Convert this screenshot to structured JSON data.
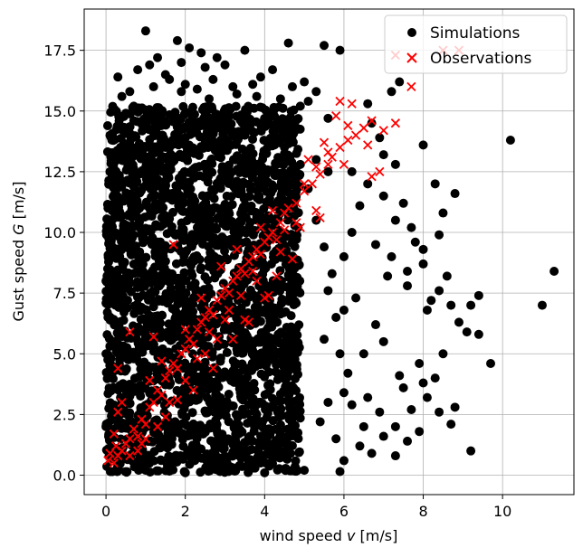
{
  "chart_data": {
    "type": "scatter",
    "xlabel": "wind speed v [m/s]",
    "ylabel": "Gust speed G [m/s]",
    "xlim": [
      -0.55,
      11.8
    ],
    "ylim": [
      -0.8,
      19.2
    ],
    "xticks": [
      0,
      2,
      4,
      6,
      8,
      10
    ],
    "yticks": [
      0.0,
      2.5,
      5.0,
      7.5,
      10.0,
      12.5,
      15.0,
      17.5
    ],
    "xtick_labels": [
      "0",
      "2",
      "4",
      "6",
      "8",
      "10"
    ],
    "ytick_labels": [
      "0.0",
      "2.5",
      "5.0",
      "7.5",
      "10.0",
      "12.5",
      "15.0",
      "17.5"
    ],
    "grid": true,
    "legend_position": "top-right",
    "series": [
      {
        "name": "Simulations",
        "marker": "circle",
        "color": "#000000",
        "points": [
          [
            1.0,
            18.3
          ],
          [
            2.1,
            17.6
          ],
          [
            1.8,
            17.9
          ],
          [
            1.3,
            17.2
          ],
          [
            2.4,
            17.4
          ],
          [
            1.5,
            16.5
          ],
          [
            1.1,
            16.9
          ],
          [
            0.3,
            16.4
          ],
          [
            0.6,
            15.8
          ],
          [
            2.8,
            17.2
          ],
          [
            3.0,
            16.9
          ],
          [
            3.5,
            17.5
          ],
          [
            3.2,
            16.0
          ],
          [
            4.2,
            16.7
          ],
          [
            4.6,
            17.8
          ],
          [
            5.5,
            17.7
          ],
          [
            5.9,
            17.5
          ],
          [
            5.0,
            16.2
          ],
          [
            3.8,
            15.6
          ],
          [
            2.6,
            15.5
          ],
          [
            1.9,
            15.8
          ],
          [
            0.7,
            15.2
          ],
          [
            0.1,
            14.0
          ],
          [
            5.1,
            15.4
          ],
          [
            5.6,
            14.7
          ],
          [
            7.2,
            15.8
          ],
          [
            7.4,
            16.2
          ],
          [
            6.6,
            15.3
          ],
          [
            6.2,
            12.5
          ],
          [
            6.6,
            12.0
          ],
          [
            6.4,
            11.1
          ],
          [
            7.0,
            11.5
          ],
          [
            7.3,
            10.5
          ],
          [
            7.5,
            11.2
          ],
          [
            7.2,
            9.0
          ],
          [
            6.8,
            9.5
          ],
          [
            7.1,
            8.2
          ],
          [
            7.6,
            8.4
          ],
          [
            8.0,
            13.6
          ],
          [
            8.8,
            11.6
          ],
          [
            8.5,
            10.8
          ],
          [
            8.0,
            9.3
          ],
          [
            8.0,
            8.7
          ],
          [
            7.6,
            7.8
          ],
          [
            8.1,
            6.8
          ],
          [
            8.4,
            7.6
          ],
          [
            8.7,
            7.0
          ],
          [
            9.2,
            7.0
          ],
          [
            9.4,
            7.4
          ],
          [
            9.1,
            5.9
          ],
          [
            9.4,
            5.8
          ],
          [
            9.7,
            4.6
          ],
          [
            8.8,
            2.8
          ],
          [
            8.7,
            2.1
          ],
          [
            8.0,
            3.8
          ],
          [
            7.9,
            4.6
          ],
          [
            7.4,
            4.1
          ],
          [
            7.5,
            3.6
          ],
          [
            7.3,
            2.0
          ],
          [
            6.9,
            2.6
          ],
          [
            6.6,
            3.2
          ],
          [
            9.2,
            1.0
          ],
          [
            10.2,
            13.8
          ],
          [
            11.0,
            7.0
          ],
          [
            11.3,
            8.4
          ],
          [
            7.7,
            2.7
          ],
          [
            7.0,
            5.5
          ],
          [
            6.8,
            6.2
          ],
          [
            6.3,
            7.3
          ],
          [
            6.5,
            5.0
          ],
          [
            6.1,
            4.2
          ],
          [
            6.4,
            1.2
          ],
          [
            6.0,
            0.6
          ],
          [
            5.8,
            1.5
          ],
          [
            5.9,
            0.15
          ],
          [
            0.7,
            14.6
          ],
          [
            1.4,
            15.0
          ],
          [
            2.2,
            14.9
          ],
          [
            3.1,
            14.8
          ],
          [
            4.0,
            14.7
          ],
          [
            4.8,
            14.3
          ],
          [
            5.3,
            13.0
          ],
          [
            5.6,
            12.5
          ],
          [
            6.2,
            10.0
          ],
          [
            6.0,
            9.0
          ],
          [
            5.7,
            8.3
          ],
          [
            6.0,
            6.8
          ],
          [
            5.5,
            5.6
          ],
          [
            5.6,
            3.0
          ],
          [
            5.4,
            2.2
          ],
          [
            0.1,
            12.5
          ],
          [
            0.05,
            11.0
          ],
          [
            0.1,
            9.5
          ],
          [
            0.0,
            8.0
          ],
          [
            0.05,
            6.5
          ],
          [
            0.0,
            5.0
          ],
          [
            0.1,
            3.5
          ],
          [
            0.0,
            2.0
          ],
          [
            0.05,
            1.0
          ],
          [
            4.0,
            0.1
          ],
          [
            3.0,
            0.2
          ],
          [
            2.0,
            0.1
          ],
          [
            1.0,
            0.2
          ],
          [
            5.0,
            0.2
          ],
          [
            1.5,
            13.5
          ],
          [
            2.5,
            13.8
          ],
          [
            3.5,
            14.0
          ],
          [
            4.5,
            13.5
          ],
          [
            6.9,
            13.9
          ],
          [
            7.0,
            13.2
          ],
          [
            6.7,
            14.5
          ],
          [
            7.3,
            12.8
          ],
          [
            7.7,
            10.2
          ],
          [
            7.8,
            9.6
          ],
          [
            8.3,
            12.0
          ],
          [
            8.4,
            9.9
          ],
          [
            8.6,
            8.2
          ],
          [
            8.2,
            7.2
          ],
          [
            8.9,
            6.3
          ],
          [
            8.5,
            5.0
          ],
          [
            8.3,
            4.0
          ],
          [
            8.1,
            3.2
          ],
          [
            8.4,
            2.6
          ],
          [
            7.9,
            1.8
          ],
          [
            7.6,
            1.4
          ],
          [
            7.3,
            0.8
          ],
          [
            6.7,
            0.9
          ],
          [
            7.0,
            1.6
          ],
          [
            6.5,
            2.0
          ],
          [
            6.2,
            2.9
          ],
          [
            6.0,
            3.4
          ],
          [
            5.9,
            5.0
          ],
          [
            5.8,
            6.5
          ],
          [
            5.6,
            7.6
          ],
          [
            5.5,
            9.4
          ],
          [
            5.3,
            10.5
          ],
          [
            5.1,
            11.8
          ],
          [
            4.9,
            12.8
          ],
          [
            1.2,
            16.0
          ],
          [
            1.6,
            16.3
          ],
          [
            2.0,
            16.1
          ],
          [
            2.3,
            15.9
          ],
          [
            2.7,
            16.3
          ],
          [
            3.3,
            15.7
          ],
          [
            3.7,
            16.1
          ],
          [
            4.4,
            15.5
          ],
          [
            4.9,
            15.2
          ],
          [
            0.4,
            15.6
          ],
          [
            0.8,
            16.7
          ],
          [
            1.9,
            17.0
          ],
          [
            2.5,
            16.8
          ],
          [
            3.9,
            16.4
          ],
          [
            4.7,
            16.0
          ],
          [
            5.3,
            15.8
          ]
        ],
        "dense_region": {
          "x_range": [
            0.0,
            4.9
          ],
          "y_range": [
            0.1,
            15.2
          ]
        }
      },
      {
        "name": "Observations",
        "marker": "x",
        "color": "#ff0000",
        "points": [
          [
            0.05,
            0.6
          ],
          [
            0.1,
            0.9
          ],
          [
            0.2,
            0.5
          ],
          [
            0.3,
            0.8
          ],
          [
            0.25,
            1.2
          ],
          [
            0.4,
            1.0
          ],
          [
            0.5,
            1.3
          ],
          [
            0.6,
            1.5
          ],
          [
            0.7,
            1.9
          ],
          [
            0.8,
            1.6
          ],
          [
            0.9,
            2.3
          ],
          [
            1.0,
            2.1
          ],
          [
            1.1,
            2.8
          ],
          [
            1.2,
            3.0
          ],
          [
            1.3,
            3.5
          ],
          [
            1.4,
            3.3
          ],
          [
            1.5,
            4.0
          ],
          [
            1.6,
            4.3
          ],
          [
            1.7,
            4.6
          ],
          [
            1.8,
            4.4
          ],
          [
            1.9,
            5.0
          ],
          [
            2.0,
            5.2
          ],
          [
            2.1,
            5.6
          ],
          [
            2.2,
            5.4
          ],
          [
            2.3,
            6.0
          ],
          [
            2.4,
            6.3
          ],
          [
            2.5,
            6.5
          ],
          [
            2.6,
            6.8
          ],
          [
            2.7,
            6.6
          ],
          [
            2.8,
            7.2
          ],
          [
            2.9,
            7.4
          ],
          [
            3.0,
            7.7
          ],
          [
            3.1,
            7.5
          ],
          [
            3.2,
            8.0
          ],
          [
            3.3,
            8.2
          ],
          [
            3.4,
            8.5
          ],
          [
            3.5,
            8.3
          ],
          [
            3.6,
            8.8
          ],
          [
            3.7,
            9.0
          ],
          [
            3.8,
            9.3
          ],
          [
            3.9,
            9.1
          ],
          [
            4.0,
            9.6
          ],
          [
            4.1,
            9.8
          ],
          [
            4.2,
            10.0
          ],
          [
            4.3,
            9.7
          ],
          [
            4.4,
            10.4
          ],
          [
            4.5,
            10.8
          ],
          [
            4.6,
            11.0
          ],
          [
            4.8,
            11.2
          ],
          [
            5.0,
            11.7
          ],
          [
            5.2,
            12.0
          ],
          [
            5.4,
            12.4
          ],
          [
            5.6,
            12.8
          ],
          [
            5.7,
            13.1
          ],
          [
            5.9,
            13.5
          ],
          [
            6.1,
            13.8
          ],
          [
            6.3,
            14.0
          ],
          [
            6.5,
            14.3
          ],
          [
            6.7,
            14.6
          ],
          [
            7.0,
            14.2
          ],
          [
            7.3,
            14.5
          ],
          [
            5.9,
            15.4
          ],
          [
            6.2,
            15.3
          ],
          [
            5.8,
            14.8
          ],
          [
            6.0,
            12.8
          ],
          [
            6.7,
            12.3
          ],
          [
            6.9,
            12.5
          ],
          [
            6.6,
            13.6
          ],
          [
            7.3,
            17.3
          ],
          [
            7.7,
            16.0
          ],
          [
            8.5,
            17.5
          ],
          [
            8.9,
            17.5
          ],
          [
            5.5,
            13.7
          ],
          [
            5.1,
            13.0
          ],
          [
            4.8,
            10.4
          ],
          [
            4.5,
            10.1
          ],
          [
            5.3,
            10.9
          ],
          [
            5.4,
            10.6
          ],
          [
            3.7,
            8.4
          ],
          [
            3.1,
            6.8
          ],
          [
            2.5,
            5.0
          ],
          [
            2.0,
            3.9
          ],
          [
            1.6,
            3.0
          ],
          [
            1.3,
            2.0
          ],
          [
            1.0,
            1.5
          ],
          [
            0.8,
            1.0
          ],
          [
            0.3,
            4.4
          ],
          [
            0.3,
            2.6
          ],
          [
            0.4,
            3.0
          ],
          [
            1.7,
            9.5
          ],
          [
            4.9,
            10.2
          ],
          [
            4.7,
            8.9
          ],
          [
            4.0,
            7.3
          ],
          [
            3.5,
            6.4
          ],
          [
            2.8,
            5.6
          ],
          [
            2.3,
            4.8
          ],
          [
            2.0,
            6.0
          ],
          [
            2.9,
            8.6
          ],
          [
            3.3,
            9.3
          ],
          [
            3.9,
            10.2
          ],
          [
            4.2,
            10.9
          ],
          [
            1.4,
            4.7
          ],
          [
            1.1,
            3.9
          ],
          [
            0.6,
            5.9
          ],
          [
            1.2,
            5.7
          ],
          [
            2.4,
            7.3
          ],
          [
            5.0,
            12.0
          ],
          [
            5.3,
            12.7
          ],
          [
            5.6,
            13.3
          ],
          [
            6.1,
            14.4
          ],
          [
            1.5,
            2.4
          ],
          [
            1.8,
            3.1
          ],
          [
            2.2,
            3.5
          ],
          [
            2.7,
            4.4
          ],
          [
            3.2,
            5.6
          ],
          [
            3.6,
            6.3
          ],
          [
            4.1,
            7.4
          ],
          [
            4.3,
            8.2
          ],
          [
            0.6,
            0.8
          ],
          [
            0.9,
            1.3
          ],
          [
            0.2,
            1.7
          ],
          [
            2.6,
            5.9
          ],
          [
            3.0,
            6.4
          ],
          [
            3.4,
            7.4
          ],
          [
            3.8,
            8.0
          ],
          [
            4.4,
            9.2
          ]
        ]
      }
    ]
  }
}
